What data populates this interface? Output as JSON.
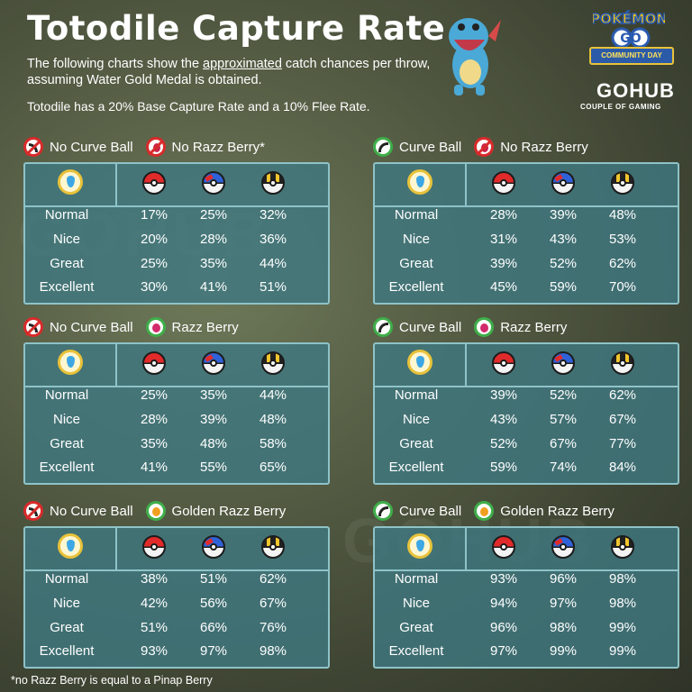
{
  "header": {
    "title": "Totodile Capture Rate",
    "subtitle_pre": "The following charts show the ",
    "subtitle_link": "approximated",
    "subtitle_post": " catch chances per throw,  assuming Water Gold Medal is obtained.",
    "rates": "Totodile has a 20% Base Capture Rate and a 10% Flee Rate."
  },
  "branding": {
    "pogo_logo": "POKÉMON GO",
    "community_day": "COMMUNITY DAY",
    "gohub": "GOHUB",
    "couple": "COUPLE OF GAMING",
    "watermark": "GOHUB"
  },
  "icons": [
    "no-curve-ball-icon",
    "curve-ball-icon",
    "no-razz-berry-icon",
    "razz-berry-icon",
    "golden-razz-berry-icon",
    "water-gold-medal-icon",
    "poke-ball-icon",
    "great-ball-icon",
    "ultra-ball-icon"
  ],
  "throws": [
    "Normal",
    "Nice",
    "Great",
    "Excellent"
  ],
  "tables": [
    {
      "curve": "No Curve Ball",
      "berry": "No Razz Berry*",
      "curve_on": false,
      "berry_type": "none",
      "rows": [
        [
          "17%",
          "25%",
          "32%"
        ],
        [
          "20%",
          "28%",
          "36%"
        ],
        [
          "25%",
          "35%",
          "44%"
        ],
        [
          "30%",
          "41%",
          "51%"
        ]
      ]
    },
    {
      "curve": "Curve Ball",
      "berry": "No Razz Berry",
      "curve_on": true,
      "berry_type": "none",
      "rows": [
        [
          "28%",
          "39%",
          "48%"
        ],
        [
          "31%",
          "43%",
          "53%"
        ],
        [
          "39%",
          "52%",
          "62%"
        ],
        [
          "45%",
          "59%",
          "70%"
        ]
      ]
    },
    {
      "curve": "No Curve Ball",
      "berry": "Razz Berry",
      "curve_on": false,
      "berry_type": "razz",
      "rows": [
        [
          "25%",
          "35%",
          "44%"
        ],
        [
          "28%",
          "39%",
          "48%"
        ],
        [
          "35%",
          "48%",
          "58%"
        ],
        [
          "41%",
          "55%",
          "65%"
        ]
      ]
    },
    {
      "curve": "Curve Ball",
      "berry": "Razz Berry",
      "curve_on": true,
      "berry_type": "razz",
      "rows": [
        [
          "39%",
          "52%",
          "62%"
        ],
        [
          "43%",
          "57%",
          "67%"
        ],
        [
          "52%",
          "67%",
          "77%"
        ],
        [
          "59%",
          "74%",
          "84%"
        ]
      ]
    },
    {
      "curve": "No Curve Ball",
      "berry": "Golden Razz Berry",
      "curve_on": false,
      "berry_type": "golden",
      "rows": [
        [
          "38%",
          "51%",
          "62%"
        ],
        [
          "42%",
          "56%",
          "67%"
        ],
        [
          "51%",
          "66%",
          "76%"
        ],
        [
          "93%",
          "97%",
          "98%"
        ]
      ]
    },
    {
      "curve": "Curve Ball",
      "berry": "Golden Razz Berry",
      "curve_on": true,
      "berry_type": "golden",
      "rows": [
        [
          "93%",
          "96%",
          "98%"
        ],
        [
          "94%",
          "97%",
          "98%"
        ],
        [
          "96%",
          "98%",
          "99%"
        ],
        [
          "97%",
          "99%",
          "99%"
        ]
      ]
    }
  ],
  "footnote": "*no Razz Berry is equal to a Pinap Berry"
}
